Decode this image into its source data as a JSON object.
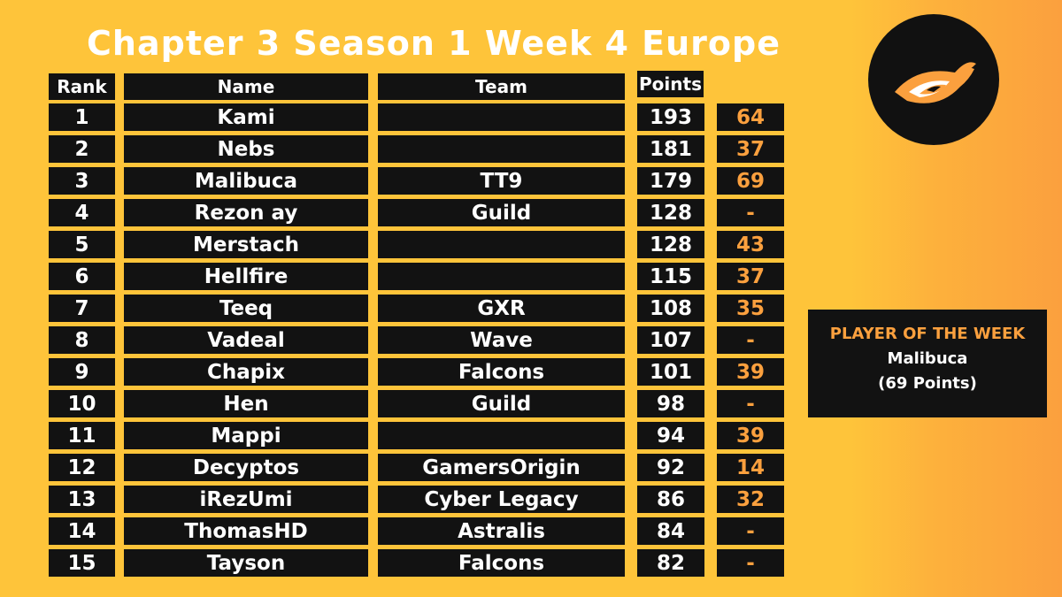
{
  "title": "Chapter 3 Season 1 Week 4 Europe",
  "colors": {
    "background": "#FEC43A",
    "accent": "#FBA03E",
    "cell": "#121212",
    "text": "#FFFFFF"
  },
  "logo": {
    "icon": "eye-logo-icon"
  },
  "headers": {
    "rank": "Rank",
    "name": "Name",
    "team": "Team",
    "points": "Points"
  },
  "rows": [
    {
      "rank": "1",
      "name": "Kami",
      "team": "",
      "points": "193",
      "change": "64"
    },
    {
      "rank": "2",
      "name": "Nebs",
      "team": "",
      "points": "181",
      "change": "37"
    },
    {
      "rank": "3",
      "name": "Malibuca",
      "team": "TT9",
      "points": "179",
      "change": "69"
    },
    {
      "rank": "4",
      "name": "Rezon ay",
      "team": "Guild",
      "points": "128",
      "change": "-"
    },
    {
      "rank": "5",
      "name": "Merstach",
      "team": "",
      "points": "128",
      "change": "43"
    },
    {
      "rank": "6",
      "name": "Hellfire",
      "team": "",
      "points": "115",
      "change": "37"
    },
    {
      "rank": "7",
      "name": "Teeq",
      "team": "GXR",
      "points": "108",
      "change": "35"
    },
    {
      "rank": "8",
      "name": "Vadeal",
      "team": "Wave",
      "points": "107",
      "change": "-"
    },
    {
      "rank": "9",
      "name": "Chapix",
      "team": "Falcons",
      "points": "101",
      "change": "39"
    },
    {
      "rank": "10",
      "name": "Hen",
      "team": "Guild",
      "points": "98",
      "change": "-"
    },
    {
      "rank": "11",
      "name": "Mappi",
      "team": "",
      "points": "94",
      "change": "39"
    },
    {
      "rank": "12",
      "name": "Decyptos",
      "team": "GamersOrigin",
      "points": "92",
      "change": "14"
    },
    {
      "rank": "13",
      "name": "iRezUmi",
      "team": "Cyber Legacy",
      "points": "86",
      "change": "32"
    },
    {
      "rank": "14",
      "name": "ThomasHD",
      "team": "Astralis",
      "points": "84",
      "change": "-"
    },
    {
      "rank": "15",
      "name": "Tayson",
      "team": "Falcons",
      "points": "82",
      "change": "-"
    }
  ],
  "player_of_week": {
    "heading": "PLAYER OF THE WEEK",
    "name": "Malibuca",
    "points": "(69 Points)"
  }
}
